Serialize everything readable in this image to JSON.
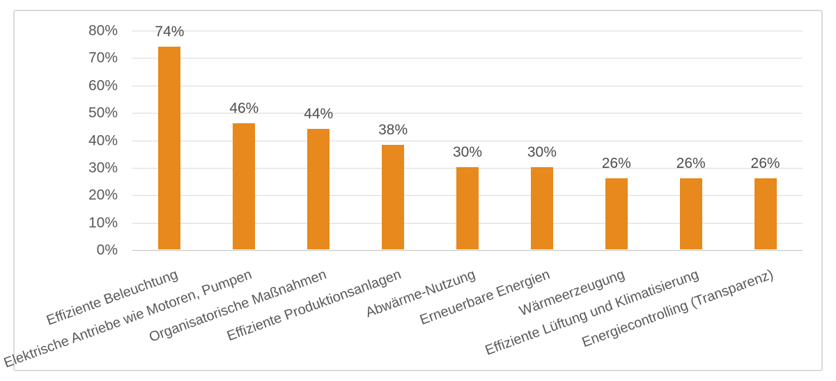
{
  "chart_data": {
    "type": "bar",
    "title": "",
    "xlabel": "",
    "ylabel": "",
    "categories": [
      "Effiziente Beleuchtung",
      "Elektrische Antriebe wie Motoren, Pumpen",
      "Organisatorische Maßnahmen",
      "Effiziente Produktionsanlagen",
      "Abwärme-Nutzung",
      "Erneuerbare Energien",
      "Wärmeerzeugung",
      "Effiziente Lüftung und Klimatisierung",
      "Energiecontrolling (Transparenz)"
    ],
    "values": [
      74,
      46,
      44,
      38,
      30,
      30,
      26,
      26,
      26
    ],
    "value_labels": [
      "74%",
      "46%",
      "44%",
      "38%",
      "30%",
      "30%",
      "26%",
      "26%",
      "26%"
    ],
    "ylim": [
      0,
      80
    ],
    "ytick_step": 10,
    "ytick_labels": [
      "0%",
      "10%",
      "20%",
      "30%",
      "40%",
      "50%",
      "60%",
      "70%",
      "80%"
    ],
    "grid": true,
    "legend": false,
    "colors": {
      "bar": "#E7891C",
      "gridline": "#D9D9D9",
      "axis_line": "#BFBFBF",
      "tick_text": "#595959",
      "data_label_text": "#4d4d4d",
      "frame_border": "#D9D9D9",
      "background": "#FFFFFF"
    },
    "category_label_rotation_deg": -20
  }
}
